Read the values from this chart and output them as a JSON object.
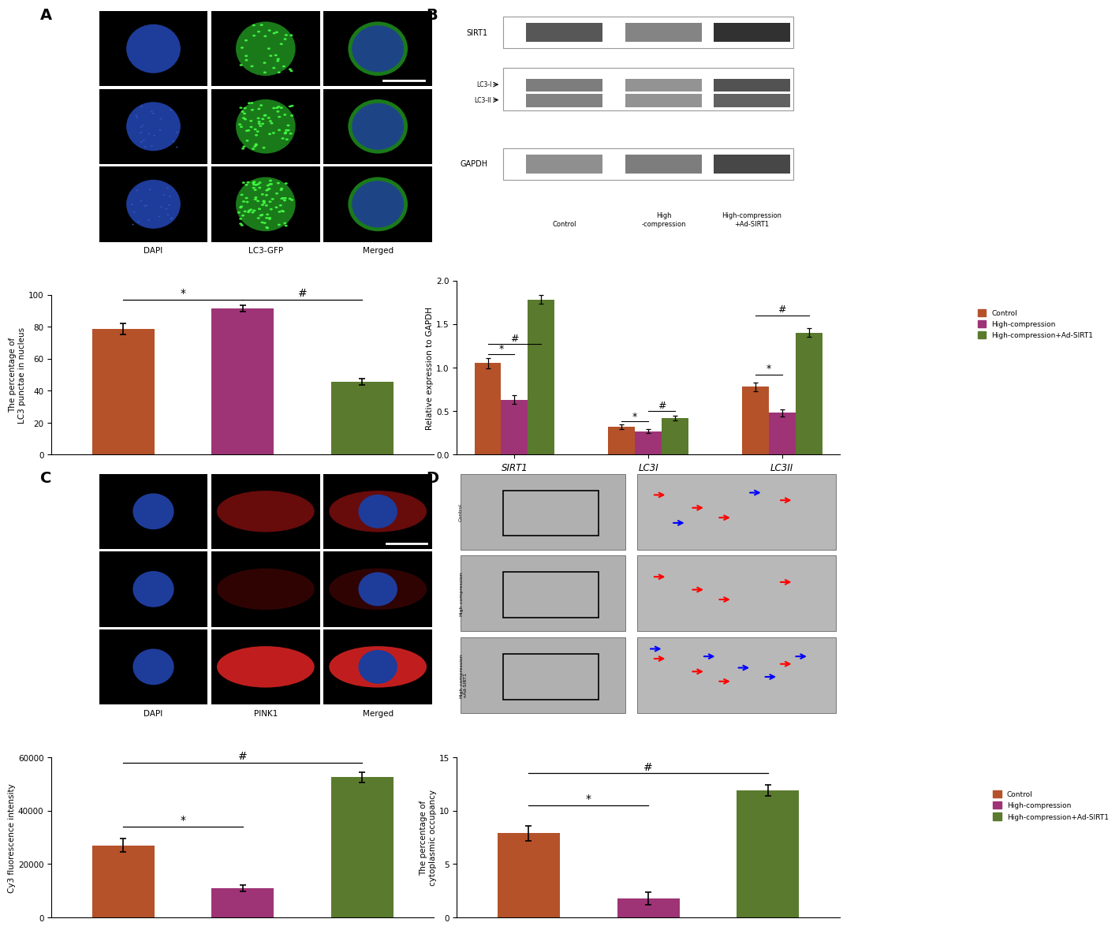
{
  "panel_A_bar": {
    "values": [
      78.5,
      91.5,
      45.5
    ],
    "errors": [
      3.5,
      2.0,
      2.0
    ],
    "colors": [
      "#b5522a",
      "#9e3476",
      "#5a7a2e"
    ],
    "ylabel": "The percentage of\nLC3 punctae in nucleus",
    "ylim": [
      0,
      100
    ],
    "yticks": [
      0,
      20,
      40,
      60,
      80,
      100
    ],
    "legend_labels": [
      "Control",
      "High-compression",
      "High-compression+Ad-SIRT1"
    ],
    "legend_colors": [
      "#b5522a",
      "#9e3476",
      "#5a7a2e"
    ]
  },
  "panel_B_bar": {
    "groups": [
      "SIRT1",
      "LC3I",
      "LC3II"
    ],
    "control_vals": [
      1.05,
      0.32,
      0.78
    ],
    "highcomp_vals": [
      0.63,
      0.27,
      0.48
    ],
    "adsirt1_vals": [
      1.78,
      0.42,
      1.4
    ],
    "control_err": [
      0.06,
      0.03,
      0.05
    ],
    "highcomp_err": [
      0.05,
      0.025,
      0.04
    ],
    "adsirt1_err": [
      0.05,
      0.03,
      0.05
    ],
    "colors": [
      "#b5522a",
      "#9e3476",
      "#5a7a2e"
    ],
    "ylabel": "Relative expression to GAPDH",
    "ylim": [
      0,
      2.0
    ],
    "yticks": [
      0.0,
      0.5,
      1.0,
      1.5,
      2.0
    ],
    "legend_labels": [
      "Control",
      "High-compression",
      "High-compression+Ad-SIRT1"
    ],
    "legend_colors": [
      "#b5522a",
      "#9e3476",
      "#5a7a2e"
    ]
  },
  "panel_C_bar": {
    "values": [
      27000,
      11000,
      52500
    ],
    "errors": [
      2500,
      1200,
      1800
    ],
    "colors": [
      "#b5522a",
      "#9e3476",
      "#5a7a2e"
    ],
    "ylabel": "Cy3 fluorescence intensity",
    "ylim": [
      0,
      60000
    ],
    "yticks": [
      0,
      20000,
      40000,
      60000
    ],
    "legend_labels": [
      "Control",
      "High-compression",
      "High-compression+Ad-SIRT1"
    ],
    "legend_colors": [
      "#b5522a",
      "#9e3476",
      "#5a7a2e"
    ]
  },
  "panel_D_bar": {
    "values": [
      7.9,
      1.8,
      11.9
    ],
    "errors": [
      0.7,
      0.6,
      0.5
    ],
    "colors": [
      "#b5522a",
      "#9e3476",
      "#5a7a2e"
    ],
    "ylabel": "The percentage of\ncytoplasmic occupancy",
    "ylim": [
      0,
      15
    ],
    "yticks": [
      0,
      5,
      10,
      15
    ],
    "legend_labels": [
      "Control",
      "High-compression",
      "High-compression+Ad-SIRT1"
    ],
    "legend_colors": [
      "#b5522a",
      "#9e3476",
      "#5a7a2e"
    ]
  },
  "background_color": "#ffffff",
  "bar_width": 0.2
}
